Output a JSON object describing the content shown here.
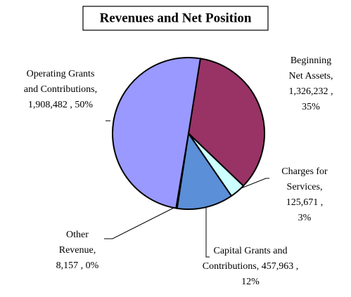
{
  "chart_data": {
    "type": "pie",
    "title": "Revenues and Net Position",
    "values": [
      1326232,
      125671,
      457963,
      8157,
      1908482
    ],
    "labels": [
      [
        "Beginning",
        "Net Assets,",
        "1,326,232 ,",
        "35%"
      ],
      [
        "Charges for",
        "Services,",
        "125,671 ,",
        "3%"
      ],
      [
        "Capital Grants and",
        "Contributions,  457,963 ,",
        "12%"
      ],
      [
        "Other",
        "Revenue,",
        "8,157 , 0%"
      ],
      [
        "Operating Grants",
        "and Contributions,",
        "1,908,482 , 50%"
      ]
    ],
    "colors": [
      "#993366",
      "#ccffff",
      "#5b8fd8",
      "#7b9fe0",
      "#9999ff"
    ]
  }
}
